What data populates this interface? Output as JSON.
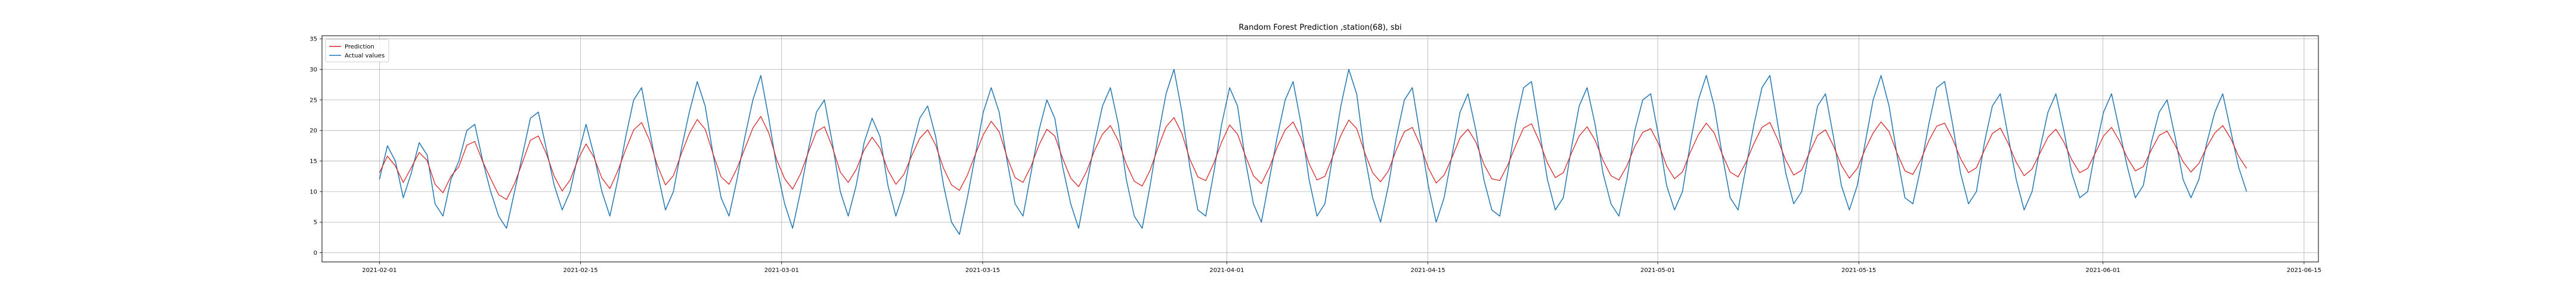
{
  "chart_data": {
    "type": "line",
    "title": "Random Forest Prediction ,station(68), sbi",
    "xlabel": "",
    "ylabel": "",
    "x_range": [
      "2021-01-28",
      "2021-06-16"
    ],
    "ylim": [
      -1.5,
      35.5
    ],
    "grid": true,
    "legend_placement": "top-left",
    "x_ticks": [
      "2021-02-01",
      "2021-02-15",
      "2021-03-01",
      "2021-03-15",
      "2021-04-01",
      "2021-04-15",
      "2021-05-01",
      "2021-05-15",
      "2021-06-01",
      "2021-06-15"
    ],
    "y_ticks": [
      0,
      5,
      10,
      15,
      20,
      25,
      30,
      35
    ],
    "x_start": "2021-02-01",
    "x_end": "2021-06-11",
    "series": [
      {
        "name": "Prediction",
        "color": "#d62728",
        "values": [
          13.1,
          15.8,
          14.2,
          11.5,
          13.9,
          16.4,
          15.1,
          11.2,
          9.8,
          12.5,
          14.1,
          17.6,
          18.2,
          14.9,
          12.1,
          9.5,
          8.7,
          11.3,
          14.8,
          18.4,
          19.1,
          16.2,
          12.5,
          10.1,
          11.9,
          15.3,
          17.8,
          15.6,
          12.2,
          10.5,
          13.4,
          16.9,
          20.1,
          21.3,
          18.4,
          14.2,
          11.1,
          12.6,
          16.2,
          19.5,
          21.8,
          20.2,
          16.1,
          12.4,
          11.2,
          13.8,
          17.1,
          20.4,
          22.3,
          19.6,
          15.2,
          12.1,
          10.4,
          12.9,
          16.5,
          19.8,
          20.6,
          17.3,
          13.2,
          11.5,
          13.6,
          16.8,
          18.9,
          17.1,
          13.5,
          11.2,
          12.8,
          15.9,
          18.7,
          20.1,
          17.6,
          13.8,
          11.1,
          10.2,
          12.7,
          16.1,
          19.3,
          21.5,
          19.8,
          15.6,
          12.3,
          11.5,
          14.1,
          17.6,
          20.2,
          19.1,
          15.4,
          12.2,
          10.8,
          13.3,
          16.7,
          19.4,
          20.8,
          18.3,
          14.5,
          11.7,
          10.9,
          13.5,
          17.2,
          20.6,
          22.1,
          19.5,
          15.3,
          12.4,
          11.8,
          14.6,
          18.1,
          20.9,
          19.4,
          15.8,
          12.6,
          11.3,
          13.9,
          17.3,
          20.1,
          21.4,
          18.7,
          14.6,
          11.9,
          12.5,
          15.8,
          19.2,
          21.7,
          20.3,
          16.4,
          13.1,
          11.6,
          13.4,
          16.9,
          19.8,
          20.5,
          17.6,
          13.9,
          11.4,
          12.7,
          15.6,
          18.8,
          20.2,
          18.1,
          14.5,
          12.1,
          11.8,
          14.3,
          17.5,
          20.4,
          21.1,
          18.2,
          14.7,
          12.3,
          13.1,
          16.2,
          19.1,
          20.6,
          18.4,
          15.1,
          12.6,
          11.9,
          14.2,
          17.4,
          19.7,
          20.3,
          17.8,
          14.2,
          12.1,
          13.2,
          16.5,
          19.3,
          21.2,
          19.6,
          16.1,
          13.2,
          12.4,
          14.8,
          17.9,
          20.5,
          21.3,
          18.5,
          15.1,
          12.7,
          13.5,
          16.4,
          19.2,
          20.1,
          17.5,
          14.3,
          12.2,
          13.8,
          16.9,
          19.6,
          21.4,
          19.8,
          16.3,
          13.4,
          12.8,
          15.2,
          18.3,
          20.7,
          21.2,
          18.6,
          15.4,
          13.1,
          13.9,
          16.8,
          19.5,
          20.4,
          17.9,
          14.8,
          12.6,
          13.7,
          16.3,
          18.9,
          20.2,
          18.1,
          15.2,
          13.1,
          13.8,
          16.4,
          19.1,
          20.5,
          18.3,
          15.5,
          13.4,
          14.1,
          16.8,
          19.2,
          19.9,
          17.6,
          14.9,
          13.2,
          14.6,
          17.3,
          19.6,
          20.8,
          18.7,
          15.8,
          13.8
        ]
      },
      {
        "name": "Actual values",
        "color": "#1f77b4",
        "values": [
          12.0,
          17.5,
          15.0,
          9.0,
          13.0,
          18.0,
          16.0,
          8.0,
          6.0,
          12.0,
          15.0,
          20.0,
          21.0,
          15.0,
          10.0,
          6.0,
          4.0,
          10.0,
          16.0,
          22.0,
          23.0,
          17.0,
          11.0,
          7.0,
          10.0,
          16.0,
          21.0,
          16.0,
          10.0,
          6.0,
          12.0,
          19.0,
          25.0,
          27.0,
          20.0,
          13.0,
          7.0,
          10.0,
          17.0,
          23.0,
          28.0,
          24.0,
          16.0,
          9.0,
          6.0,
          12.0,
          19.0,
          25.0,
          29.0,
          22.0,
          14.0,
          8.0,
          4.0,
          10.0,
          17.0,
          23.0,
          25.0,
          18.0,
          10.0,
          6.0,
          11.0,
          18.0,
          22.0,
          19.0,
          11.0,
          6.0,
          10.0,
          17.0,
          22.0,
          24.0,
          19.0,
          11.0,
          5.0,
          3.0,
          9.0,
          16.0,
          23.0,
          27.0,
          23.0,
          15.0,
          8.0,
          6.0,
          13.0,
          20.0,
          25.0,
          22.0,
          14.0,
          8.0,
          4.0,
          11.0,
          18.0,
          24.0,
          27.0,
          21.0,
          12.0,
          6.0,
          4.0,
          11.0,
          19.0,
          26.0,
          30.0,
          23.0,
          14.0,
          7.0,
          6.0,
          13.0,
          21.0,
          27.0,
          24.0,
          15.0,
          8.0,
          5.0,
          12.0,
          19.0,
          25.0,
          28.0,
          21.0,
          12.0,
          6.0,
          8.0,
          16.0,
          24.0,
          30.0,
          26.0,
          16.0,
          9.0,
          5.0,
          11.0,
          19.0,
          25.0,
          27.0,
          19.0,
          11.0,
          5.0,
          9.0,
          16.0,
          23.0,
          26.0,
          20.0,
          12.0,
          7.0,
          6.0,
          13.0,
          21.0,
          27.0,
          28.0,
          20.0,
          12.0,
          7.0,
          9.0,
          17.0,
          24.0,
          27.0,
          21.0,
          13.0,
          8.0,
          6.0,
          12.0,
          20.0,
          25.0,
          26.0,
          19.0,
          11.0,
          7.0,
          10.0,
          18.0,
          25.0,
          29.0,
          24.0,
          16.0,
          9.0,
          7.0,
          14.0,
          21.0,
          27.0,
          29.0,
          21.0,
          13.0,
          8.0,
          10.0,
          17.0,
          24.0,
          26.0,
          19.0,
          11.0,
          7.0,
          11.0,
          18.0,
          25.0,
          29.0,
          24.0,
          16.0,
          9.0,
          8.0,
          14.0,
          21.0,
          27.0,
          28.0,
          21.0,
          13.0,
          8.0,
          10.0,
          18.0,
          24.0,
          26.0,
          19.0,
          12.0,
          7.0,
          10.0,
          17.0,
          23.0,
          26.0,
          20.0,
          13.0,
          9.0,
          10.0,
          17.0,
          23.0,
          26.0,
          20.0,
          14.0,
          9.0,
          11.0,
          18.0,
          23.0,
          25.0,
          19.0,
          12.0,
          9.0,
          12.0,
          18.0,
          23.0,
          26.0,
          20.0,
          14.0,
          10.0
        ]
      }
    ]
  }
}
